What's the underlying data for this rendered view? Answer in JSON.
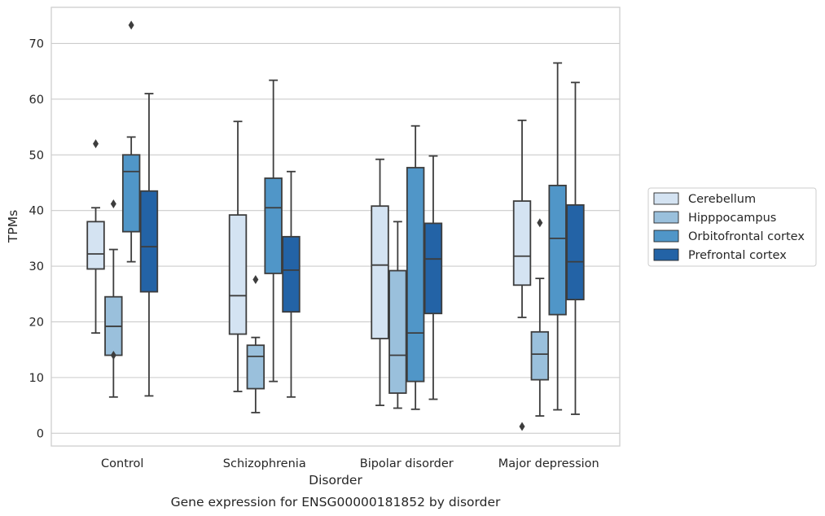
{
  "caption": "Gene expression for ENSG00000181852 by disorder",
  "chart_data": {
    "type": "box",
    "title": "",
    "xlabel": "Disorder",
    "ylabel": "TPMs",
    "ylim": [
      -2.3,
      76.5
    ],
    "yticks": [
      0,
      10,
      20,
      30,
      40,
      50,
      60,
      70
    ],
    "grid": "horizontal",
    "legend_placement": "right",
    "categories": [
      "Control",
      "Schizophrenia",
      "Bipolar disorder",
      "Major depression"
    ],
    "series": [
      {
        "name": "Cerebellum",
        "color": "#d4e3f2",
        "boxes": [
          {
            "whislo": 18.0,
            "q1": 29.5,
            "med": 32.2,
            "q3": 38.0,
            "whishi": 40.5,
            "fliers": [
              52.0
            ]
          },
          {
            "whislo": 7.5,
            "q1": 17.8,
            "med": 24.7,
            "q3": 39.2,
            "whishi": 56.0,
            "fliers": []
          },
          {
            "whislo": 5.0,
            "q1": 17.0,
            "med": 30.2,
            "q3": 40.8,
            "whishi": 49.2,
            "fliers": []
          },
          {
            "whislo": 20.8,
            "q1": 26.6,
            "med": 31.8,
            "q3": 41.7,
            "whishi": 56.2,
            "fliers": [
              1.2
            ]
          }
        ]
      },
      {
        "name": "Hipppocampus",
        "color": "#9ac0dc",
        "boxes": [
          {
            "whislo": 6.5,
            "q1": 14.0,
            "med": 19.2,
            "q3": 24.5,
            "whishi": 33.0,
            "fliers": [
              41.2,
              14.0
            ]
          },
          {
            "whislo": 3.7,
            "q1": 8.0,
            "med": 13.8,
            "q3": 15.8,
            "whishi": 17.2,
            "fliers": [
              27.6
            ]
          },
          {
            "whislo": 4.5,
            "q1": 7.2,
            "med": 14.0,
            "q3": 29.2,
            "whishi": 38.0,
            "fliers": []
          },
          {
            "whislo": 3.1,
            "q1": 9.6,
            "med": 14.2,
            "q3": 18.2,
            "whishi": 27.8,
            "fliers": [
              37.8
            ]
          }
        ]
      },
      {
        "name": "Orbitofrontal cortex",
        "color": "#5096c8",
        "boxes": [
          {
            "whislo": 30.8,
            "q1": 36.2,
            "med": 47.0,
            "q3": 50.0,
            "whishi": 53.2,
            "fliers": [
              73.3
            ]
          },
          {
            "whislo": 9.3,
            "q1": 28.7,
            "med": 40.5,
            "q3": 45.8,
            "whishi": 63.4,
            "fliers": []
          },
          {
            "whislo": 4.3,
            "q1": 9.3,
            "med": 18.0,
            "q3": 47.7,
            "whishi": 55.2,
            "fliers": []
          },
          {
            "whislo": 4.2,
            "q1": 21.3,
            "med": 35.0,
            "q3": 44.5,
            "whishi": 66.5,
            "fliers": []
          }
        ]
      },
      {
        "name": "Prefrontal cortex",
        "color": "#2363a6",
        "boxes": [
          {
            "whislo": 6.7,
            "q1": 25.4,
            "med": 33.5,
            "q3": 43.5,
            "whishi": 61.0,
            "fliers": []
          },
          {
            "whislo": 6.5,
            "q1": 21.8,
            "med": 29.3,
            "q3": 35.3,
            "whishi": 47.0,
            "fliers": []
          },
          {
            "whislo": 6.1,
            "q1": 21.5,
            "med": 31.3,
            "q3": 37.7,
            "whishi": 49.8,
            "fliers": []
          },
          {
            "whislo": 3.4,
            "q1": 24.0,
            "med": 30.8,
            "q3": 41.0,
            "whishi": 63.0,
            "fliers": []
          }
        ]
      }
    ]
  }
}
